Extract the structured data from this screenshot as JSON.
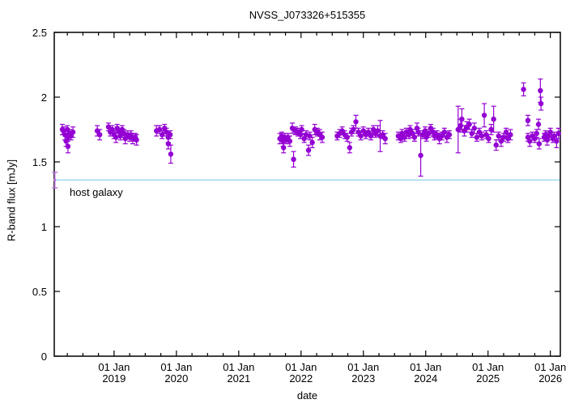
{
  "chart_data": {
    "type": "scatter",
    "title": "NVSS_J073326+515355",
    "xlabel": "date",
    "ylabel": "R-band flux [mJy]",
    "host_galaxy": {
      "label": "host galaxy",
      "flux": 1.36,
      "line_color": "#8fcfe9"
    },
    "reference_point": {
      "year": 2018.05,
      "flux": 1.36,
      "err": 0.06,
      "color": "#bd6ee0"
    },
    "style": {
      "point_color": "#9400d3",
      "point_radius": 3.2,
      "axis_color": "#000000",
      "background": "#ffffff"
    },
    "x_axis": {
      "min_year": 2018.04,
      "max_year": 2026.16,
      "minor_tick_interval_years": 0.25,
      "major_ticks": [
        {
          "year": 2019,
          "line1": "01 Jan",
          "line2": "2019"
        },
        {
          "year": 2020,
          "line1": "01 Jan",
          "line2": "2020"
        },
        {
          "year": 2021,
          "line1": "01 Jan",
          "line2": "2021"
        },
        {
          "year": 2022,
          "line1": "01 Jan",
          "line2": "2022"
        },
        {
          "year": 2023,
          "line1": "01 Jan",
          "line2": "2023"
        },
        {
          "year": 2024,
          "line1": "01 Jan",
          "line2": "2024"
        },
        {
          "year": 2025,
          "line1": "01 Jan",
          "line2": "2025"
        },
        {
          "year": 2026,
          "line1": "01 Jan",
          "line2": "2026"
        }
      ]
    },
    "y_axis": {
      "min": 0,
      "max": 2.5,
      "tick_values": [
        0,
        0.5,
        1,
        1.5,
        2,
        2.5
      ],
      "tick_labels": [
        "0",
        "0.5",
        "1",
        "1.5",
        "2",
        "2.5"
      ]
    },
    "points": [
      [
        2018.17,
        1.75,
        0.04
      ],
      [
        2018.19,
        1.74,
        0.03
      ],
      [
        2018.21,
        1.71,
        0.04
      ],
      [
        2018.23,
        1.66,
        0.04
      ],
      [
        2018.25,
        1.75,
        0.03
      ],
      [
        2018.26,
        1.69,
        0.03
      ],
      [
        2018.26,
        1.62,
        0.05
      ],
      [
        2018.29,
        1.72,
        0.03
      ],
      [
        2018.31,
        1.7,
        0.03
      ],
      [
        2018.34,
        1.73,
        0.04
      ],
      [
        2018.73,
        1.74,
        0.04
      ],
      [
        2018.77,
        1.71,
        0.04
      ],
      [
        2018.91,
        1.77,
        0.03
      ],
      [
        2018.94,
        1.73,
        0.03
      ],
      [
        2018.97,
        1.75,
        0.03
      ],
      [
        2019.0,
        1.71,
        0.03
      ],
      [
        2019.03,
        1.69,
        0.04
      ],
      [
        2019.05,
        1.76,
        0.03
      ],
      [
        2019.08,
        1.73,
        0.03
      ],
      [
        2019.1,
        1.7,
        0.03
      ],
      [
        2019.13,
        1.75,
        0.03
      ],
      [
        2019.16,
        1.72,
        0.03
      ],
      [
        2019.18,
        1.68,
        0.04
      ],
      [
        2019.22,
        1.71,
        0.03
      ],
      [
        2019.25,
        1.69,
        0.03
      ],
      [
        2019.27,
        1.71,
        0.03
      ],
      [
        2019.3,
        1.68,
        0.04
      ],
      [
        2019.34,
        1.69,
        0.03
      ],
      [
        2019.36,
        1.67,
        0.04
      ],
      [
        2019.68,
        1.74,
        0.04
      ],
      [
        2019.73,
        1.75,
        0.03
      ],
      [
        2019.77,
        1.71,
        0.03
      ],
      [
        2019.81,
        1.76,
        0.03
      ],
      [
        2019.84,
        1.73,
        0.03
      ],
      [
        2019.87,
        1.69,
        0.04
      ],
      [
        2019.87,
        1.64,
        0.04
      ],
      [
        2019.9,
        1.71,
        0.03
      ],
      [
        2019.91,
        1.56,
        0.07
      ],
      [
        2021.66,
        1.68,
        0.04
      ],
      [
        2021.69,
        1.7,
        0.03
      ],
      [
        2021.71,
        1.66,
        0.04
      ],
      [
        2021.72,
        1.61,
        0.04
      ],
      [
        2021.74,
        1.69,
        0.03
      ],
      [
        2021.77,
        1.67,
        0.03
      ],
      [
        2021.79,
        1.69,
        0.03
      ],
      [
        2021.82,
        1.66,
        0.04
      ],
      [
        2021.86,
        1.76,
        0.04
      ],
      [
        2021.88,
        1.52,
        0.06
      ],
      [
        2021.91,
        1.74,
        0.03
      ],
      [
        2021.95,
        1.73,
        0.03
      ],
      [
        2021.99,
        1.71,
        0.03
      ],
      [
        2022.01,
        1.75,
        0.03
      ],
      [
        2022.05,
        1.68,
        0.03
      ],
      [
        2022.08,
        1.71,
        0.03
      ],
      [
        2022.12,
        1.59,
        0.04
      ],
      [
        2022.14,
        1.7,
        0.03
      ],
      [
        2022.18,
        1.65,
        0.04
      ],
      [
        2022.22,
        1.75,
        0.04
      ],
      [
        2022.26,
        1.73,
        0.03
      ],
      [
        2022.3,
        1.71,
        0.04
      ],
      [
        2022.34,
        1.69,
        0.04
      ],
      [
        2022.58,
        1.7,
        0.03
      ],
      [
        2022.62,
        1.72,
        0.03
      ],
      [
        2022.66,
        1.74,
        0.03
      ],
      [
        2022.7,
        1.71,
        0.03
      ],
      [
        2022.74,
        1.69,
        0.03
      ],
      [
        2022.78,
        1.61,
        0.04
      ],
      [
        2022.81,
        1.73,
        0.03
      ],
      [
        2022.84,
        1.75,
        0.03
      ],
      [
        2022.88,
        1.81,
        0.05
      ],
      [
        2022.92,
        1.73,
        0.03
      ],
      [
        2022.96,
        1.7,
        0.03
      ],
      [
        2023.0,
        1.74,
        0.03
      ],
      [
        2023.04,
        1.71,
        0.03
      ],
      [
        2023.08,
        1.73,
        0.03
      ],
      [
        2023.12,
        1.7,
        0.03
      ],
      [
        2023.16,
        1.75,
        0.03
      ],
      [
        2023.19,
        1.72,
        0.03
      ],
      [
        2023.23,
        1.74,
        0.04
      ],
      [
        2023.27,
        1.7,
        0.12
      ],
      [
        2023.31,
        1.71,
        0.03
      ],
      [
        2023.35,
        1.68,
        0.04
      ],
      [
        2023.56,
        1.7,
        0.03
      ],
      [
        2023.6,
        1.68,
        0.03
      ],
      [
        2023.62,
        1.72,
        0.03
      ],
      [
        2023.66,
        1.69,
        0.03
      ],
      [
        2023.69,
        1.73,
        0.03
      ],
      [
        2023.73,
        1.71,
        0.03
      ],
      [
        2023.75,
        1.75,
        0.03
      ],
      [
        2023.79,
        1.72,
        0.03
      ],
      [
        2023.82,
        1.69,
        0.03
      ],
      [
        2023.86,
        1.76,
        0.04
      ],
      [
        2023.88,
        1.73,
        0.03
      ],
      [
        2023.92,
        1.55,
        0.16
      ],
      [
        2023.95,
        1.71,
        0.03
      ],
      [
        2023.99,
        1.74,
        0.03
      ],
      [
        2024.01,
        1.69,
        0.03
      ],
      [
        2024.05,
        1.72,
        0.03
      ],
      [
        2024.08,
        1.76,
        0.03
      ],
      [
        2024.12,
        1.73,
        0.03
      ],
      [
        2024.14,
        1.7,
        0.03
      ],
      [
        2024.18,
        1.71,
        0.03
      ],
      [
        2024.22,
        1.68,
        0.04
      ],
      [
        2024.26,
        1.7,
        0.03
      ],
      [
        2024.3,
        1.73,
        0.03
      ],
      [
        2024.34,
        1.69,
        0.04
      ],
      [
        2024.38,
        1.71,
        0.03
      ],
      [
        2024.52,
        1.75,
        0.18
      ],
      [
        2024.56,
        1.78,
        0.05
      ],
      [
        2024.58,
        1.83,
        0.08
      ],
      [
        2024.62,
        1.74,
        0.04
      ],
      [
        2024.66,
        1.77,
        0.04
      ],
      [
        2024.7,
        1.79,
        0.04
      ],
      [
        2024.74,
        1.72,
        0.03
      ],
      [
        2024.78,
        1.76,
        0.04
      ],
      [
        2024.82,
        1.69,
        0.03
      ],
      [
        2024.86,
        1.73,
        0.03
      ],
      [
        2024.9,
        1.7,
        0.03
      ],
      [
        2024.94,
        1.86,
        0.09
      ],
      [
        2024.97,
        1.71,
        0.03
      ],
      [
        2025.01,
        1.68,
        0.03
      ],
      [
        2025.05,
        1.75,
        0.04
      ],
      [
        2025.09,
        1.83,
        0.1
      ],
      [
        2025.13,
        1.63,
        0.04
      ],
      [
        2025.17,
        1.7,
        0.03
      ],
      [
        2025.21,
        1.66,
        0.04
      ],
      [
        2025.25,
        1.69,
        0.03
      ],
      [
        2025.29,
        1.73,
        0.03
      ],
      [
        2025.32,
        1.68,
        0.03
      ],
      [
        2025.36,
        1.71,
        0.04
      ],
      [
        2025.57,
        2.06,
        0.05
      ],
      [
        2025.64,
        1.82,
        0.04
      ],
      [
        2025.64,
        1.69,
        0.03
      ],
      [
        2025.67,
        1.66,
        0.04
      ],
      [
        2025.71,
        1.7,
        0.03
      ],
      [
        2025.75,
        1.68,
        0.03
      ],
      [
        2025.78,
        1.72,
        0.03
      ],
      [
        2025.81,
        1.79,
        0.04
      ],
      [
        2025.82,
        1.64,
        0.04
      ],
      [
        2025.84,
        2.05,
        0.09
      ],
      [
        2025.85,
        1.95,
        0.05
      ],
      [
        2025.9,
        1.69,
        0.03
      ],
      [
        2025.92,
        1.71,
        0.03
      ],
      [
        2025.95,
        1.67,
        0.04
      ],
      [
        2025.97,
        1.7,
        0.03
      ],
      [
        2026.0,
        1.73,
        0.03
      ],
      [
        2026.04,
        1.68,
        0.03
      ],
      [
        2026.06,
        1.7,
        0.03
      ],
      [
        2026.1,
        1.66,
        0.05
      ],
      [
        2026.13,
        1.72,
        0.04
      ]
    ]
  }
}
